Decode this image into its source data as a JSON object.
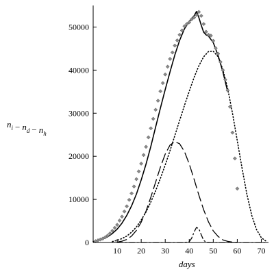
{
  "chart_data": {
    "type": "line",
    "xlabel": "days",
    "ylabel": {
      "parts": [
        {
          "base": "n",
          "sub": "i"
        },
        {
          "op": "−"
        },
        {
          "base": "n",
          "sub": "d"
        },
        {
          "op": "−"
        },
        {
          "base": "n",
          "sub": "h"
        }
      ]
    },
    "xlim": [
      0,
      73
    ],
    "ylim": [
      0,
      55000
    ],
    "x_ticks": [
      10,
      20,
      30,
      40,
      50,
      60,
      70
    ],
    "y_ticks": [
      0,
      10000,
      20000,
      30000,
      40000,
      50000
    ],
    "series": [
      {
        "style": "solid",
        "x": [
          0,
          2,
          4,
          6,
          8,
          10,
          12,
          14,
          16,
          18,
          20,
          22,
          24,
          26,
          28,
          30,
          32,
          34,
          36,
          38,
          40,
          41,
          42,
          43,
          44,
          45,
          46,
          47,
          48,
          50,
          52,
          54,
          56
        ],
        "values": [
          200,
          450,
          800,
          1300,
          2100,
          3100,
          4500,
          6300,
          8500,
          11200,
          14500,
          18200,
          22300,
          26800,
          31200,
          35500,
          39600,
          43500,
          46900,
          49600,
          51300,
          52000,
          52600,
          53600,
          52200,
          50400,
          48800,
          48200,
          47900,
          46400,
          43400,
          39600,
          35000
        ]
      },
      {
        "style": "dotted",
        "x": [
          8,
          10,
          12,
          14,
          16,
          18,
          20,
          22,
          24,
          26,
          28,
          30,
          32,
          34,
          36,
          38,
          40,
          42,
          44,
          46,
          48,
          50,
          52,
          54,
          56,
          58,
          60,
          62,
          64,
          66,
          68,
          70,
          72
        ],
        "values": [
          200,
          500,
          900,
          1500,
          2400,
          3600,
          5200,
          7100,
          9400,
          12000,
          14900,
          18000,
          21300,
          24800,
          28300,
          31800,
          35100,
          38300,
          41000,
          43100,
          44300,
          44400,
          43100,
          40100,
          35700,
          30000,
          23600,
          17200,
          11200,
          6300,
          3000,
          1100,
          300
        ]
      },
      {
        "style": "long-dash",
        "x": [
          10,
          12,
          14,
          16,
          18,
          20,
          22,
          24,
          26,
          28,
          30,
          32,
          34,
          36,
          38,
          40,
          42,
          44,
          46,
          48,
          50,
          52,
          54,
          56,
          58,
          60
        ],
        "values": [
          100,
          300,
          700,
          1500,
          2800,
          4700,
          7300,
          10500,
          14000,
          17500,
          20500,
          22600,
          23400,
          22900,
          21100,
          18200,
          14700,
          11000,
          7600,
          4800,
          2700,
          1400,
          600,
          250,
          100,
          0
        ]
      },
      {
        "style": "dash-dot",
        "x": [
          10,
          20,
          30,
          38,
          40,
          41,
          42,
          43,
          44,
          45,
          46,
          47,
          50,
          60,
          70,
          72
        ],
        "values": [
          0,
          0,
          0,
          0,
          200,
          1000,
          2400,
          3500,
          3200,
          1800,
          500,
          80,
          0,
          0,
          0,
          0
        ]
      }
    ],
    "markers": {
      "x": [
        1,
        2,
        3,
        4,
        5,
        6,
        7,
        8,
        9,
        10,
        11,
        12,
        13,
        14,
        15,
        16,
        17,
        18,
        19,
        20,
        21,
        22,
        23,
        24,
        25,
        26,
        27,
        28,
        29,
        30,
        31,
        32,
        33,
        34,
        35,
        36,
        37,
        38,
        39,
        40,
        41,
        42,
        43,
        44,
        45,
        46,
        47,
        48,
        49,
        50,
        51,
        52,
        53,
        54,
        55,
        56,
        57,
        58,
        59,
        60
      ],
      "values": [
        300,
        500,
        700,
        900,
        1200,
        1600,
        2100,
        2700,
        3400,
        4100,
        5100,
        6000,
        7200,
        8400,
        9900,
        11400,
        13000,
        14700,
        16500,
        18300,
        20300,
        22200,
        24400,
        26500,
        28700,
        30800,
        32900,
        35100,
        37000,
        39000,
        40800,
        42600,
        44100,
        45700,
        46900,
        48200,
        49200,
        50200,
        50700,
        51100,
        51800,
        52200,
        52800,
        53500,
        52600,
        50700,
        48900,
        48200,
        48000,
        46800,
        45100,
        43800,
        41900,
        40000,
        37800,
        35300,
        31500,
        25500,
        19500,
        12500
      ]
    }
  }
}
